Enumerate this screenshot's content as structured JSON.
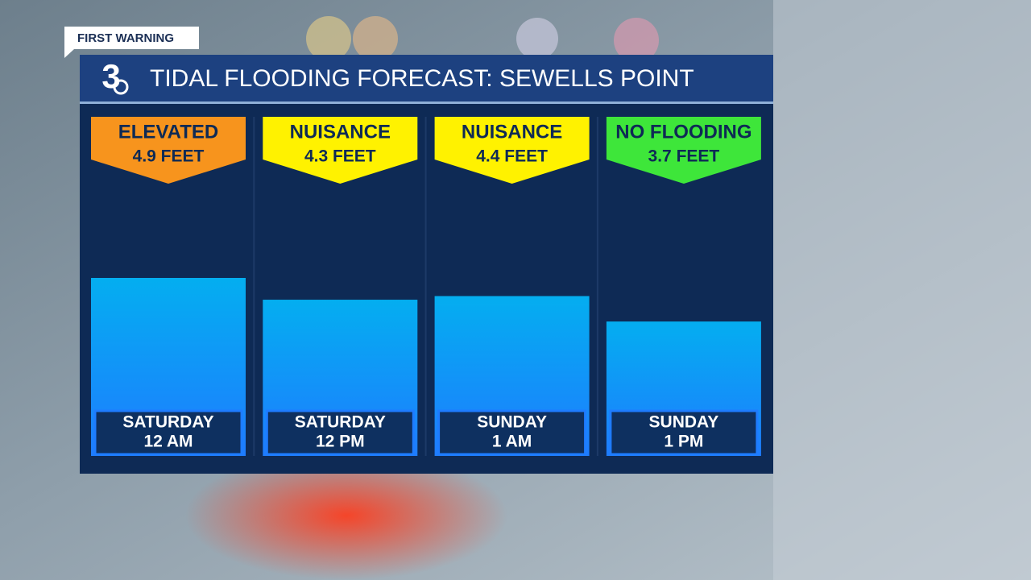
{
  "badge": "FIRST WARNING",
  "logo": "3",
  "chart_data": {
    "type": "bar",
    "title": "TIDAL FLOODING FORECAST: SEWELLS POINT",
    "categories": [
      [
        "SATURDAY",
        "12 AM"
      ],
      [
        "SATURDAY",
        "12 PM"
      ],
      [
        "SUNDAY",
        "1 AM"
      ],
      [
        "SUNDAY",
        "1 PM"
      ]
    ],
    "levels": [
      "ELEVATED",
      "NUISANCE",
      "NUISANCE",
      "NO FLOODING"
    ],
    "level_colors": [
      "#f7941d",
      "#fff200",
      "#fff200",
      "#3ee63a"
    ],
    "values": [
      4.9,
      4.3,
      4.4,
      3.7
    ],
    "value_labels": [
      "4.9 FEET",
      "4.3 FEET",
      "4.4 FEET",
      "3.7 FEET"
    ],
    "color": "#12a6f2"
  }
}
